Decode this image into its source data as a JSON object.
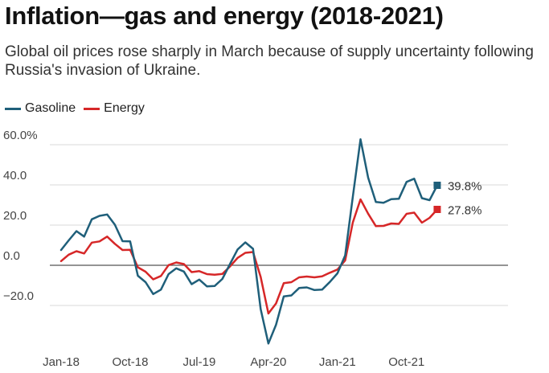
{
  "chart_data": {
    "type": "line",
    "title": "Inflation—gas and energy (2018-2021)",
    "subtitle": "Global oil prices rose sharply in March because of supply uncertainty following Russia's invasion of Ukraine.",
    "xlabel": "",
    "ylabel": "",
    "x_tick_labels": [
      "Jan-18",
      "Oct-18",
      "Jul-19",
      "Apr-20",
      "Jan-21",
      "Oct-21"
    ],
    "y_tick_labels": [
      "60.0%",
      "40.0",
      "20.0",
      "0.0",
      "−20.0"
    ],
    "y_ticks": [
      60,
      40,
      20,
      0,
      -20
    ],
    "ylim": [
      -40,
      65
    ],
    "grid": true,
    "legend_position": "top-left",
    "months": [
      "2018-01",
      "2018-02",
      "2018-03",
      "2018-04",
      "2018-05",
      "2018-06",
      "2018-07",
      "2018-08",
      "2018-09",
      "2018-10",
      "2018-11",
      "2018-12",
      "2019-01",
      "2019-02",
      "2019-03",
      "2019-04",
      "2019-05",
      "2019-06",
      "2019-07",
      "2019-08",
      "2019-09",
      "2019-10",
      "2019-11",
      "2019-12",
      "2020-01",
      "2020-02",
      "2020-03",
      "2020-04",
      "2020-05",
      "2020-06",
      "2020-07",
      "2020-08",
      "2020-09",
      "2020-10",
      "2020-11",
      "2020-12",
      "2021-01",
      "2021-02",
      "2021-03",
      "2021-04",
      "2021-05",
      "2021-06",
      "2021-07",
      "2021-08",
      "2021-09",
      "2021-10",
      "2021-11",
      "2021-12",
      "2022-01",
      "2022-02"
    ],
    "series": [
      {
        "name": "Gasoline",
        "color": "#1f5f7a",
        "end_label": "39.8%",
        "values": [
          7.6,
          12.4,
          17.0,
          14.3,
          22.9,
          24.6,
          25.3,
          20.2,
          12.0,
          11.9,
          -5.2,
          -8.4,
          -14.3,
          -12.1,
          -4.4,
          -1.5,
          -3.1,
          -9.4,
          -7.1,
          -10.5,
          -10.3,
          -6.8,
          0.6,
          7.9,
          11.4,
          8.2,
          -21.8,
          -38.9,
          -29.6,
          -15.5,
          -15.0,
          -11.3,
          -11.0,
          -12.3,
          -12.1,
          -8.3,
          -4.0,
          4.9,
          34.0,
          62.7,
          43.6,
          31.5,
          31.1,
          32.9,
          33.1,
          41.5,
          43.1,
          33.4,
          32.4,
          39.8
        ]
      },
      {
        "name": "Energy",
        "color": "#d62728",
        "end_label": "27.8%",
        "values": [
          2.1,
          5.3,
          7.0,
          5.9,
          11.3,
          11.9,
          14.3,
          10.7,
          7.6,
          7.7,
          -1.0,
          -3.2,
          -7.0,
          -5.3,
          0.1,
          1.4,
          0.6,
          -3.4,
          -2.9,
          -4.4,
          -4.7,
          -4.3,
          -0.6,
          3.7,
          6.2,
          6.6,
          -5.8,
          -24.0,
          -19.0,
          -8.9,
          -8.4,
          -6.0,
          -5.6,
          -6.0,
          -5.5,
          -3.7,
          -2.1,
          2.4,
          21.3,
          32.8,
          25.7,
          19.5,
          19.6,
          20.8,
          20.6,
          25.6,
          26.2,
          21.2,
          23.6,
          27.8
        ]
      }
    ]
  }
}
